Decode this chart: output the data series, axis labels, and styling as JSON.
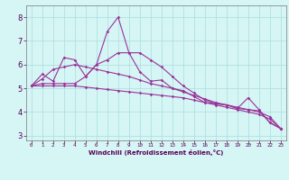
{
  "xlabel": "Windchill (Refroidissement éolien,°C)",
  "x": [
    0,
    1,
    2,
    3,
    4,
    5,
    6,
    7,
    8,
    9,
    10,
    11,
    12,
    13,
    14,
    15,
    16,
    17,
    18,
    19,
    20,
    21,
    22,
    23
  ],
  "line1": [
    5.1,
    5.6,
    5.3,
    6.3,
    6.2,
    5.5,
    6.0,
    7.4,
    8.0,
    6.5,
    5.7,
    5.3,
    5.35,
    5.0,
    4.9,
    4.65,
    4.4,
    4.35,
    4.3,
    4.15,
    4.1,
    4.05,
    3.55,
    3.3
  ],
  "line2": [
    5.1,
    5.2,
    5.2,
    5.2,
    5.2,
    5.5,
    6.0,
    6.2,
    6.5,
    6.5,
    6.5,
    6.2,
    5.9,
    5.5,
    5.1,
    4.8,
    4.5,
    4.35,
    4.3,
    4.15,
    4.6,
    4.1,
    3.55,
    3.3
  ],
  "line3": [
    5.1,
    5.4,
    5.8,
    5.9,
    6.0,
    5.9,
    5.8,
    5.7,
    5.6,
    5.5,
    5.35,
    5.2,
    5.1,
    5.0,
    4.85,
    4.7,
    4.55,
    4.4,
    4.3,
    4.2,
    4.1,
    4.0,
    3.8,
    3.3
  ],
  "line4": [
    5.1,
    5.1,
    5.1,
    5.1,
    5.1,
    5.05,
    5.0,
    4.95,
    4.9,
    4.85,
    4.8,
    4.75,
    4.7,
    4.65,
    4.6,
    4.5,
    4.4,
    4.3,
    4.2,
    4.1,
    4.0,
    3.9,
    3.7,
    3.3
  ],
  "line_color": "#993399",
  "bg_color": "#d6f5f5",
  "grid_color": "#aadddd",
  "ylim": [
    2.8,
    8.5
  ],
  "yticks": [
    3,
    4,
    5,
    6,
    7,
    8
  ],
  "xlim": [
    -0.5,
    23.5
  ],
  "xticks": [
    0,
    1,
    2,
    3,
    4,
    5,
    6,
    7,
    8,
    9,
    10,
    11,
    12,
    13,
    14,
    15,
    16,
    17,
    18,
    19,
    20,
    21,
    22,
    23
  ],
  "xlabel_fontsize": 5.0,
  "xtick_fontsize": 4.2,
  "ytick_fontsize": 6.0,
  "lw": 0.8,
  "ms": 1.8
}
